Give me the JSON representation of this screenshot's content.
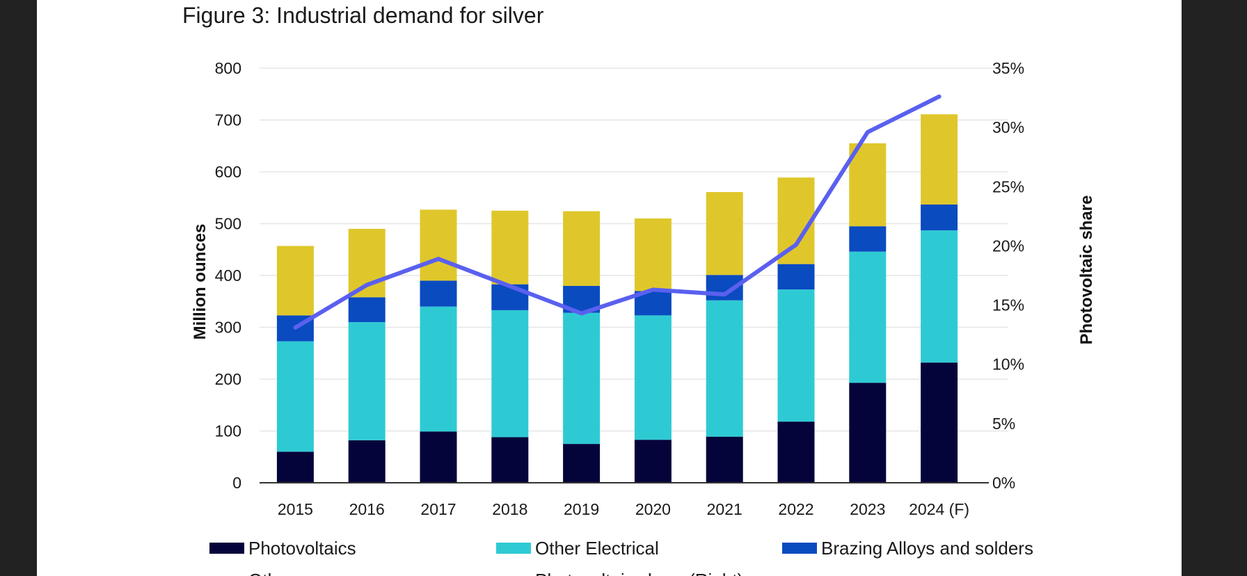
{
  "chart_data": {
    "type": "bar",
    "stacked": true,
    "title": "Figure 3: Industrial demand for silver",
    "ylabel": "Million ounces",
    "y2label": "Photovoltaic share",
    "ylim": [
      0,
      800
    ],
    "yticks": [
      "0",
      "100",
      "200",
      "300",
      "400",
      "500",
      "600",
      "700",
      "800"
    ],
    "y2lim": [
      0,
      35
    ],
    "y2ticks": [
      "0%",
      "5%",
      "10%",
      "15%",
      "20%",
      "25%",
      "30%",
      "35%"
    ],
    "categories": [
      "2015",
      "2016",
      "2017",
      "2018",
      "2019",
      "2020",
      "2021",
      "2022",
      "2023",
      "2024 (F)"
    ],
    "grid": true,
    "legend_position": "bottom",
    "series": [
      {
        "name": "Photovoltaics",
        "color": "#04043a",
        "values": [
          60,
          82,
          99,
          88,
          75,
          83,
          89,
          118,
          193,
          232
        ]
      },
      {
        "name": "Other Electrical",
        "color": "#2ecad4",
        "values": [
          213,
          228,
          241,
          245,
          253,
          240,
          263,
          255,
          253,
          255
        ]
      },
      {
        "name": "Brazing Alloys and solders",
        "color": "#0a4bc0",
        "values": [
          50,
          48,
          50,
          50,
          52,
          47,
          49,
          49,
          49,
          50
        ]
      },
      {
        "name": "Other",
        "color": "#dfc72b",
        "values": [
          134,
          132,
          137,
          142,
          144,
          140,
          160,
          167,
          160,
          174
        ]
      }
    ],
    "line_series": {
      "name": "Photovoltaic share (Right)",
      "color": "#5a60ef",
      "axis": "right",
      "values": [
        13.1,
        16.7,
        18.9,
        16.6,
        14.3,
        16.3,
        15.9,
        20.1,
        29.6,
        32.6
      ]
    }
  }
}
